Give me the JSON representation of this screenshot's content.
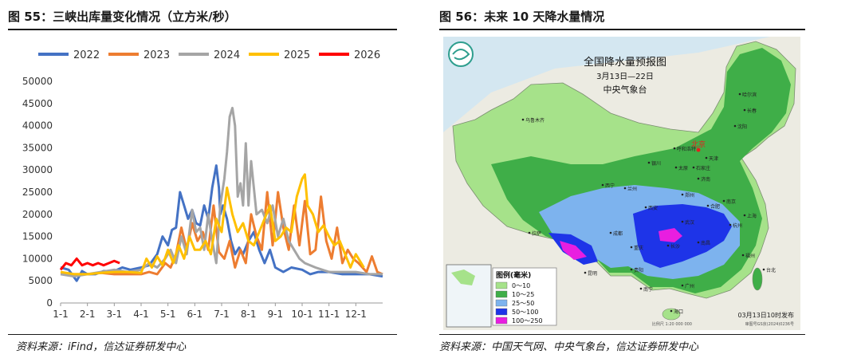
{
  "left": {
    "title": "图 55：三峡出库量变化情况（立方米/秒）",
    "source": "资料来源：iFind，信达证券研发中心"
  },
  "right": {
    "title": "图 56：未来 10 天降水量情况",
    "source": "资料来源：中国天气网、中央气象台，信达证券研发中心"
  },
  "chart_data": {
    "type": "line",
    "title": "",
    "xlabel": "",
    "ylabel": "",
    "ylim": [
      0,
      50000
    ],
    "yticks": [
      0,
      5000,
      10000,
      15000,
      20000,
      25000,
      30000,
      35000,
      40000,
      45000,
      50000
    ],
    "xlim": [
      1,
      13
    ],
    "xticks": [
      1,
      2,
      3,
      4,
      5,
      6,
      7,
      8,
      9,
      10,
      11,
      12
    ],
    "xtick_labels": [
      "1-1",
      "2-1",
      "3-1",
      "4-1",
      "5-1",
      "6-1",
      "7-1",
      "8-1",
      "9-1",
      "10-1",
      "11-1",
      "12-1"
    ],
    "series": [
      {
        "name": "2022",
        "color": "#4472C4",
        "x": [
          1,
          1.3,
          1.6,
          1.8,
          2,
          2.3,
          2.6,
          3,
          3.3,
          3.6,
          4,
          4.3,
          4.6,
          4.8,
          5,
          5.15,
          5.3,
          5.45,
          5.6,
          5.75,
          5.9,
          6.05,
          6.2,
          6.35,
          6.5,
          6.65,
          6.8,
          6.9,
          6.95,
          7.05,
          7.2,
          7.35,
          7.5,
          7.65,
          7.8,
          8,
          8.2,
          8.4,
          8.6,
          8.8,
          9,
          9.3,
          9.6,
          10,
          10.3,
          10.6,
          11,
          11.5,
          12,
          12.5,
          13
        ],
        "y": [
          8000,
          7500,
          5000,
          7200,
          6500,
          6500,
          7200,
          7200,
          8000,
          7500,
          8000,
          8500,
          11000,
          15000,
          13000,
          16500,
          17000,
          25000,
          22000,
          19000,
          21000,
          18000,
          17500,
          22000,
          19000,
          26000,
          31000,
          26000,
          20000,
          22000,
          19000,
          14000,
          11000,
          12500,
          11000,
          14000,
          16000,
          12000,
          9000,
          12000,
          8000,
          7000,
          8000,
          7500,
          6500,
          7000,
          7000,
          6500,
          6500,
          6500,
          6000
        ]
      },
      {
        "name": "2023",
        "color": "#ED7D31",
        "x": [
          1,
          1.5,
          2,
          2.5,
          3,
          3.5,
          4,
          4.3,
          4.6,
          4.9,
          5.1,
          5.3,
          5.5,
          5.7,
          5.9,
          6.1,
          6.3,
          6.5,
          6.7,
          6.9,
          7.1,
          7.3,
          7.5,
          7.7,
          7.9,
          8.1,
          8.3,
          8.5,
          8.7,
          8.9,
          9.1,
          9.3,
          9.5,
          9.7,
          9.9,
          10.1,
          10.3,
          10.5,
          10.7,
          10.9,
          11.1,
          11.3,
          11.5,
          11.7,
          11.9,
          12.1,
          12.4,
          12.6,
          12.8,
          13
        ],
        "y": [
          6500,
          6500,
          6500,
          6800,
          6500,
          6500,
          6500,
          7000,
          6500,
          9000,
          8000,
          11000,
          17000,
          12000,
          18000,
          14000,
          16000,
          12000,
          22000,
          11500,
          10000,
          14000,
          8000,
          12000,
          9000,
          20000,
          15000,
          12000,
          25000,
          13000,
          25000,
          17000,
          12000,
          22000,
          13000,
          23000,
          11000,
          12000,
          24000,
          14000,
          10000,
          17000,
          9000,
          12000,
          10000,
          9000,
          7000,
          10500,
          7000,
          6500
        ]
      },
      {
        "name": "2024",
        "color": "#A5A5A5",
        "x": [
          1,
          1.5,
          2,
          2.5,
          3,
          3.5,
          4,
          4.3,
          4.6,
          4.9,
          5.1,
          5.3,
          5.5,
          5.7,
          5.9,
          6.05,
          6.2,
          6.35,
          6.5,
          6.65,
          6.8,
          6.95,
          7.1,
          7.2,
          7.3,
          7.4,
          7.5,
          7.6,
          7.7,
          7.8,
          7.9,
          8,
          8.1,
          8.2,
          8.3,
          8.5,
          8.7,
          8.9,
          9.1,
          9.3,
          9.5,
          9.7,
          9.9,
          10.1,
          10.5,
          11,
          11.5,
          12,
          12.5,
          13
        ],
        "y": [
          6500,
          6000,
          6500,
          7000,
          7500,
          7000,
          7500,
          9000,
          8000,
          10000,
          12000,
          9000,
          15000,
          11000,
          21000,
          16000,
          17000,
          12000,
          20000,
          14000,
          9000,
          22000,
          28000,
          34000,
          42000,
          44000,
          40000,
          24000,
          27000,
          22000,
          36000,
          22000,
          32000,
          26000,
          20000,
          21000,
          18000,
          22000,
          15000,
          19000,
          14000,
          12000,
          10000,
          9000,
          8000,
          7000,
          7000,
          7000,
          6500,
          6500
        ]
      },
      {
        "name": "2025",
        "color": "#FFC000",
        "x": [
          1,
          1.5,
          2,
          2.5,
          3,
          3.5,
          4,
          4.2,
          4.4,
          4.6,
          4.8,
          5,
          5.2,
          5.4,
          5.6,
          5.8,
          6,
          6.2,
          6.4,
          6.6,
          6.8,
          7,
          7.2,
          7.4,
          7.6,
          7.8,
          8,
          8.2,
          8.4,
          8.6,
          8.8,
          9,
          9.2,
          9.4,
          9.6,
          9.8,
          10,
          10.1,
          10.2,
          10.4,
          10.6,
          10.8,
          11,
          11.2,
          11.4,
          11.6,
          11.8,
          12,
          12.2,
          12.3
        ],
        "y": [
          7000,
          6500,
          6500,
          6800,
          7000,
          7000,
          6800,
          10000,
          8000,
          10500,
          8500,
          12000,
          9000,
          13000,
          10000,
          15000,
          12000,
          12000,
          14000,
          11000,
          19000,
          16000,
          26000,
          20000,
          16000,
          18000,
          14000,
          13000,
          16000,
          19000,
          22000,
          14000,
          15000,
          17000,
          16000,
          24000,
          28000,
          29000,
          22000,
          20000,
          16000,
          17500,
          15000,
          13000,
          14000,
          11000,
          8000,
          11000,
          9000,
          8000
        ]
      },
      {
        "name": "2026",
        "color": "#FF0000",
        "x": [
          1,
          1.2,
          1.4,
          1.6,
          1.8,
          2,
          2.2,
          2.4,
          2.6,
          2.8,
          3,
          3.2
        ],
        "y": [
          7500,
          9000,
          8500,
          10000,
          8500,
          9000,
          8500,
          9000,
          8500,
          9000,
          9500,
          9000
        ]
      }
    ]
  },
  "map": {
    "title": "全国降水量预报图",
    "date_range": "3月13日—22日",
    "issuer": "中央气象台",
    "legend_title": "图例(毫米)",
    "legend": [
      {
        "label": "0～10",
        "color": "#A6E28A"
      },
      {
        "label": "10～25",
        "color": "#3FAE48"
      },
      {
        "label": "25～50",
        "color": "#7DB3EE"
      },
      {
        "label": "50～100",
        "color": "#1E34E8"
      },
      {
        "label": "100～250",
        "color": "#E81EE0"
      }
    ],
    "release": "03月13日10时发布",
    "scale_text": "比例尺 1:20 000 000",
    "map_no": "审图号GS京(2024)0236号",
    "capital": "北京",
    "cities": [
      {
        "name": "乌鲁木齐"
      },
      {
        "name": "哈尔滨"
      },
      {
        "name": "长春"
      },
      {
        "name": "沈阳"
      },
      {
        "name": "呼和浩特"
      },
      {
        "name": "天津"
      },
      {
        "name": "石家庄"
      },
      {
        "name": "太原"
      },
      {
        "name": "银川"
      },
      {
        "name": "济南"
      },
      {
        "name": "兰州"
      },
      {
        "name": "西宁"
      },
      {
        "name": "郑州"
      },
      {
        "name": "西安"
      },
      {
        "name": "合肥"
      },
      {
        "name": "南京"
      },
      {
        "name": "上海"
      },
      {
        "name": "武汉"
      },
      {
        "name": "杭州"
      },
      {
        "name": "拉萨"
      },
      {
        "name": "成都"
      },
      {
        "name": "重庆"
      },
      {
        "name": "长沙"
      },
      {
        "name": "南昌"
      },
      {
        "name": "福州"
      },
      {
        "name": "贵阳"
      },
      {
        "name": "昆明"
      },
      {
        "name": "南宁"
      },
      {
        "name": "广州"
      },
      {
        "name": "海口"
      },
      {
        "name": "台北"
      }
    ]
  }
}
